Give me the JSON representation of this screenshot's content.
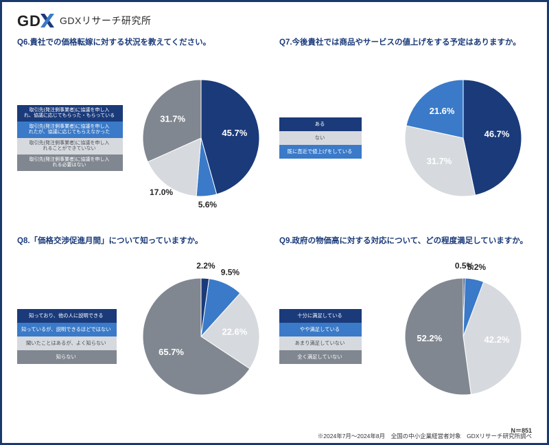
{
  "brand": {
    "title": "GDXリサーチ研究所"
  },
  "palette": {
    "navy": "#1a3a7a",
    "blue": "#3a7ac8",
    "silver": "#d6d9de",
    "gray": "#808790",
    "label_inside": "#ffffff",
    "label_outside": "#262626",
    "page_border": "#1a3a6c"
  },
  "pie_geom": {
    "radius": 85
  },
  "charts": {
    "q6": {
      "title": "Q6.貴社での価格転嫁に対する状況を教えてください。",
      "legend_pos": "middle",
      "slices": [
        {
          "label": "取引先(発注側事業者)に協議を申し入\nれ、協議に応じてもらった・もらっている",
          "value": 45.7,
          "color": "#1a3a7a",
          "pct_text": "45.7%",
          "text_inside": true
        },
        {
          "label": "取引先(発注側事業者)に協議を申し入\nれたが、協議に応じてもらえなかった",
          "value": 5.6,
          "color": "#3a7ac8",
          "pct_text": "5.6%",
          "text_inside": false
        },
        {
          "label": "取引先(発注側事業者)に協議を申し入\nれることができていない",
          "value": 17.0,
          "color": "#d6d9de",
          "pct_text": "17.0%",
          "text_inside": false,
          "text_color": "#262626"
        },
        {
          "label": "取引先(発注側事業者)に協議を申し入\nれる必要はない",
          "value": 31.7,
          "color": "#808790",
          "pct_text": "31.7%",
          "text_inside": true
        }
      ]
    },
    "q7": {
      "title": "Q7.今後貴社では商品やサービスの値上げをする予定はありますか。",
      "legend_pos": "middle",
      "slices": [
        {
          "label": "ある",
          "value": 46.7,
          "color": "#1a3a7a",
          "pct_text": "46.7%",
          "text_inside": true
        },
        {
          "label": "ない",
          "value": 31.7,
          "color": "#d6d9de",
          "pct_text": "31.7%",
          "text_inside": true,
          "text_color": "#5a5f66"
        },
        {
          "label": "既に直近で値上げをしている",
          "value": 21.6,
          "color": "#3a7ac8",
          "pct_text": "21.6%",
          "text_inside": true
        }
      ]
    },
    "q8": {
      "title": "Q8.「価格交渉促進月間」について知っていますか。",
      "legend_pos": "middle",
      "slices": [
        {
          "label": "知っており、他の人に説明できる",
          "value": 2.2,
          "color": "#1a3a7a",
          "pct_text": "2.2%",
          "text_inside": false
        },
        {
          "label": "知っているが、説明できるほどではない",
          "value": 9.5,
          "color": "#3a7ac8",
          "pct_text": "9.5%",
          "text_inside": false
        },
        {
          "label": "聞いたことはあるが、よく知らない",
          "value": 22.6,
          "color": "#d6d9de",
          "pct_text": "22.6%",
          "text_inside": true,
          "text_color": "#5a5f66"
        },
        {
          "label": "知らない",
          "value": 65.7,
          "color": "#808790",
          "pct_text": "65.7%",
          "text_inside": true
        }
      ]
    },
    "q9": {
      "title": "Q9.政府の物価高に対する対応について、どの程度満足していますか。",
      "legend_pos": "middle",
      "slices": [
        {
          "label": "十分に満足している",
          "value": 0.5,
          "color": "#1a3a7a",
          "pct_text": "0.5%",
          "text_inside": false
        },
        {
          "label": "やや満足している",
          "value": 5.2,
          "color": "#3a7ac8",
          "pct_text": "5.2%",
          "text_inside": false
        },
        {
          "label": "あまり満足していない",
          "value": 42.2,
          "color": "#d6d9de",
          "pct_text": "42.2%",
          "text_inside": true,
          "text_color": "#5a5f66"
        },
        {
          "label": "全く満足していない",
          "value": 52.2,
          "color": "#808790",
          "pct_text": "52.2%",
          "text_inside": true
        }
      ]
    }
  },
  "footer": {
    "n_label": "N＝851",
    "note": "※2024年7月～2024年8月　全国の中小企業経営者対象　GDXリサーチ研究所調べ"
  }
}
